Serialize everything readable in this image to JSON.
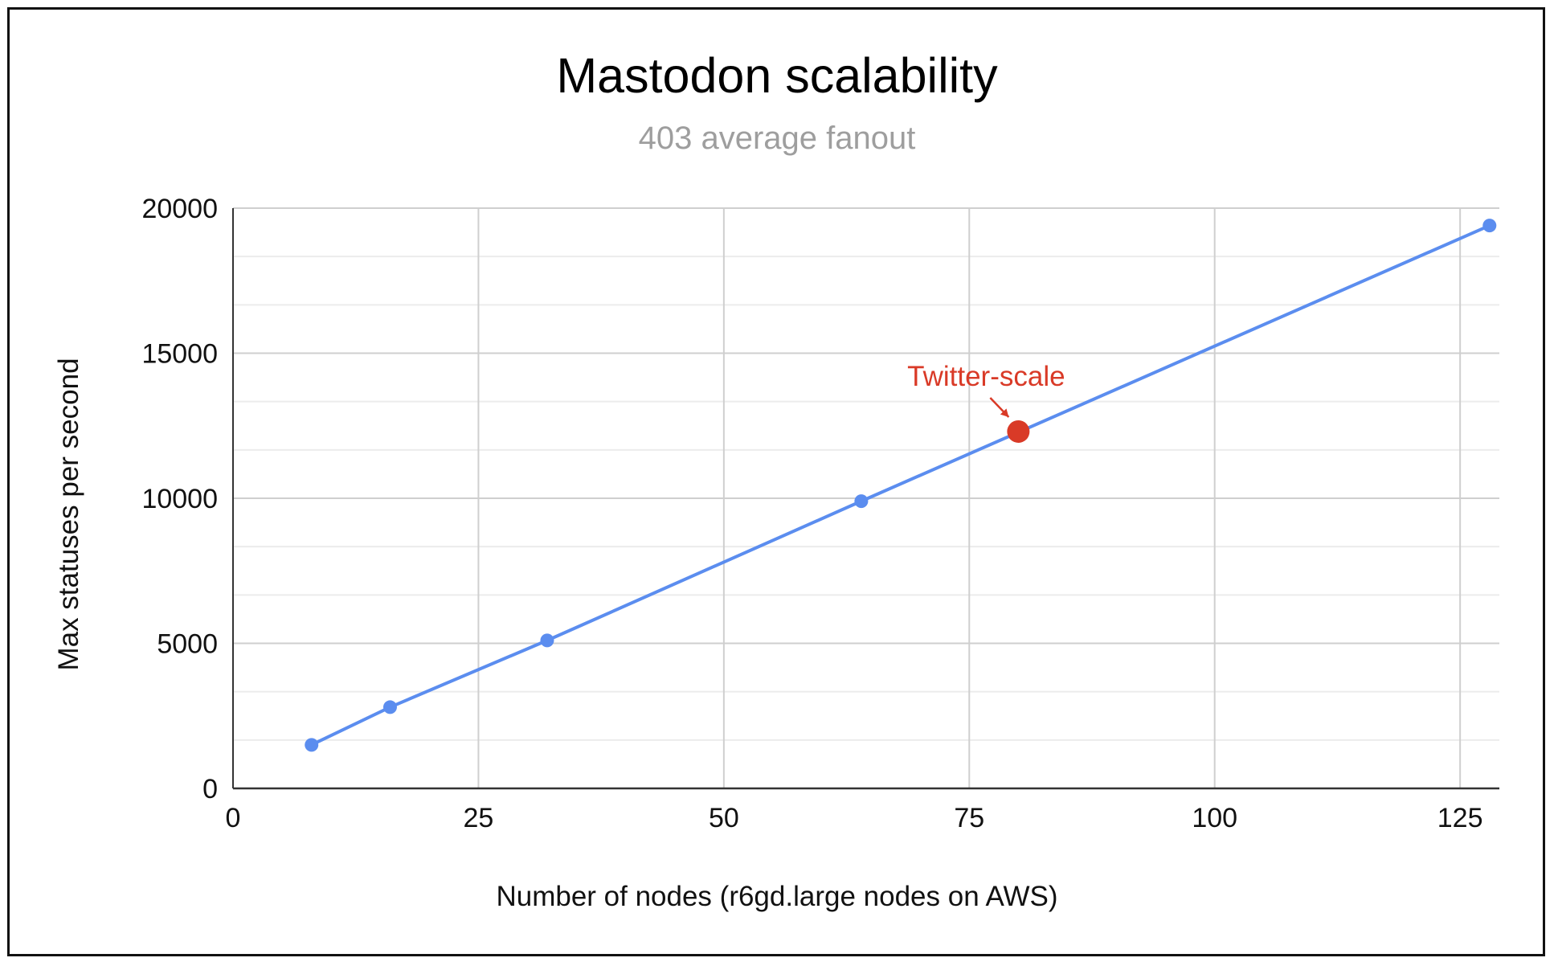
{
  "chart_data": {
    "type": "line",
    "title": "Mastodon scalability",
    "subtitle": "403 average fanout",
    "xlabel": "Number of nodes (r6gd.large nodes on AWS)",
    "ylabel": "Max statuses per second",
    "xlim": [
      0,
      129
    ],
    "ylim": [
      0,
      20000
    ],
    "x_ticks": [
      0,
      25,
      50,
      75,
      100,
      125
    ],
    "y_ticks": [
      0,
      5000,
      10000,
      15000,
      20000
    ],
    "y_minor_step": 1666.67,
    "grid": true,
    "legend": "none",
    "series": [
      {
        "name": "Max statuses per second",
        "color": "#5b8def",
        "points": [
          {
            "x": 8,
            "y": 1500
          },
          {
            "x": 16,
            "y": 2800
          },
          {
            "x": 32,
            "y": 5100
          },
          {
            "x": 64,
            "y": 9900
          },
          {
            "x": 128,
            "y": 19400
          }
        ]
      }
    ],
    "highlight": {
      "label": "Twitter-scale",
      "x": 80,
      "y": 12300,
      "color": "#d93a27"
    }
  }
}
